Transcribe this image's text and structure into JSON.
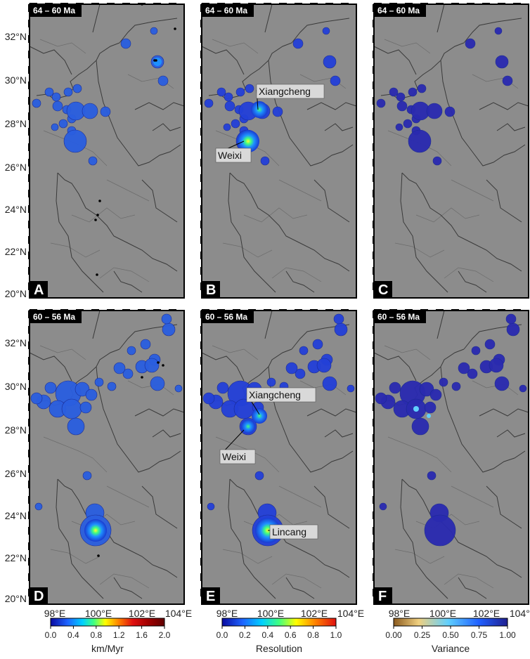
{
  "panels": [
    {
      "letter": "A",
      "age": "64 – 60 Ma"
    },
    {
      "letter": "B",
      "age": "64 – 60 Ma"
    },
    {
      "letter": "C",
      "age": "64 – 60 Ma"
    },
    {
      "letter": "D",
      "age": "60 – 56 Ma"
    },
    {
      "letter": "E",
      "age": "60 – 56 Ma"
    },
    {
      "letter": "F",
      "age": "60 – 56 Ma"
    }
  ],
  "lat_labels_top": [
    "32°N",
    "30°N",
    "28°N",
    "26°N",
    "24°N",
    "22°N",
    "20°N"
  ],
  "lat_labels_bottom": [
    "32°N",
    "30°N",
    "28°N",
    "26°N",
    "24°N",
    "22°N",
    "20°N"
  ],
  "lon_labels": [
    "98°E",
    "100°E",
    "102°E",
    "104°E"
  ],
  "places_b": {
    "xiangcheng": "Xiangcheng",
    "weixi": "Weixi"
  },
  "places_e": {
    "xiangcheng": "Xiangcheng",
    "weixi": "Weixi",
    "lincang": "Lincang"
  },
  "colorbars": [
    {
      "title": "km/Myr",
      "ticks": [
        "0.0",
        "0.4",
        "0.8",
        "1.2",
        "1.6",
        "2.0"
      ],
      "range": [
        0,
        2.0
      ],
      "colors": [
        "#1a1aa0",
        "#1e64ff",
        "#00c8ff",
        "#40ff80",
        "#ffff00",
        "#ff8000",
        "#e01010",
        "#a00000",
        "#600000"
      ]
    },
    {
      "title": "Resolution",
      "ticks": [
        "0.0",
        "0.2",
        "0.4",
        "0.6",
        "0.8",
        "1.0"
      ],
      "range": [
        0,
        1.0
      ],
      "colors": [
        "#1a1aa0",
        "#1e64ff",
        "#00c8ff",
        "#40ff80",
        "#ffff00",
        "#ff8000",
        "#e01010"
      ]
    },
    {
      "title": "Variance",
      "ticks": [
        "0.00",
        "0.25",
        "0.50",
        "0.75",
        "1.00"
      ],
      "range": [
        0,
        1.0
      ],
      "colors": [
        "#8b5a1e",
        "#f0d080",
        "#60d0ff",
        "#2060ff",
        "#202090"
      ]
    }
  ],
  "colors": {
    "map_bg": "#8c8c8c",
    "boundary": "#3a3a3a",
    "frame": "#000000"
  }
}
